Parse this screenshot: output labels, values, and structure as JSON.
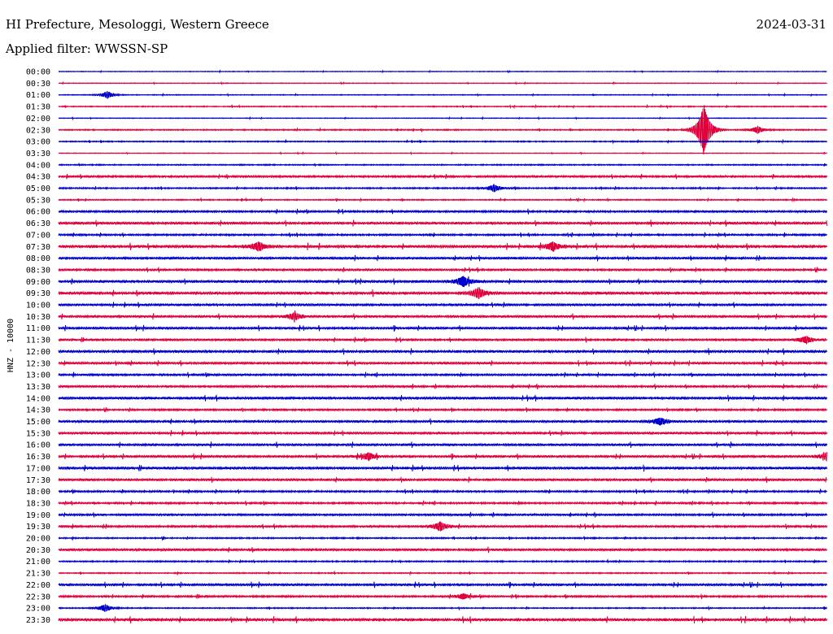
{
  "header": {
    "station": "HI Prefecture, Mesologgi, Western Greece",
    "date": "2024-03-31",
    "filter": "Applied filter: WWSSN-SP"
  },
  "chart_data": {
    "type": "line",
    "subtype": "helicorder",
    "ylabel": "HNZ - 10000",
    "colors": [
      "#0000cc",
      "#e0003c"
    ],
    "rows": [
      "00:00",
      "00:30",
      "01:00",
      "01:30",
      "02:00",
      "02:30",
      "03:00",
      "03:30",
      "04:00",
      "04:30",
      "05:00",
      "05:30",
      "06:00",
      "06:30",
      "07:00",
      "07:30",
      "08:00",
      "08:30",
      "09:00",
      "09:30",
      "10:00",
      "10:30",
      "11:00",
      "11:30",
      "12:00",
      "12:30",
      "13:00",
      "13:30",
      "14:00",
      "14:30",
      "15:00",
      "15:30",
      "16:00",
      "16:30",
      "17:00",
      "17:30",
      "18:00",
      "18:30",
      "19:00",
      "19:30",
      "20:00",
      "20:30",
      "21:00",
      "21:30",
      "22:00",
      "22:30",
      "23:00",
      "23:30"
    ],
    "row_minutes": 30,
    "noise_level": [
      0.3,
      0.3,
      0.35,
      0.45,
      0.3,
      0.5,
      0.5,
      0.3,
      0.5,
      0.9,
      0.6,
      0.5,
      0.9,
      1.1,
      0.8,
      1.2,
      1.0,
      0.9,
      1.1,
      1.2,
      1.0,
      1.0,
      1.0,
      0.9,
      1.1,
      1.0,
      0.9,
      0.9,
      1.1,
      0.8,
      1.0,
      1.0,
      1.0,
      1.0,
      1.1,
      1.0,
      0.8,
      0.8,
      0.9,
      0.9,
      0.6,
      1.0,
      0.6,
      0.5,
      1.0,
      0.8,
      0.5,
      1.2
    ],
    "events": [
      {
        "row": 2,
        "minute": 1.9,
        "amplitude": 4
      },
      {
        "row": 5,
        "minute": 25.2,
        "amplitude": 30
      },
      {
        "row": 5,
        "minute": 27.3,
        "amplitude": 4
      },
      {
        "row": 10,
        "minute": 17.0,
        "amplitude": 4
      },
      {
        "row": 15,
        "minute": 7.8,
        "amplitude": 5
      },
      {
        "row": 15,
        "minute": 19.3,
        "amplitude": 5
      },
      {
        "row": 18,
        "minute": 15.8,
        "amplitude": 6
      },
      {
        "row": 19,
        "minute": 16.4,
        "amplitude": 6
      },
      {
        "row": 21,
        "minute": 9.2,
        "amplitude": 4
      },
      {
        "row": 23,
        "minute": 29.2,
        "amplitude": 4
      },
      {
        "row": 30,
        "minute": 23.5,
        "amplitude": 4
      },
      {
        "row": 33,
        "minute": 12.1,
        "amplitude": 4
      },
      {
        "row": 33,
        "minute": 30.0,
        "amplitude": 4
      },
      {
        "row": 39,
        "minute": 14.9,
        "amplitude": 5
      },
      {
        "row": 45,
        "minute": 15.8,
        "amplitude": 3
      },
      {
        "row": 46,
        "minute": 1.8,
        "amplitude": 4
      }
    ]
  }
}
